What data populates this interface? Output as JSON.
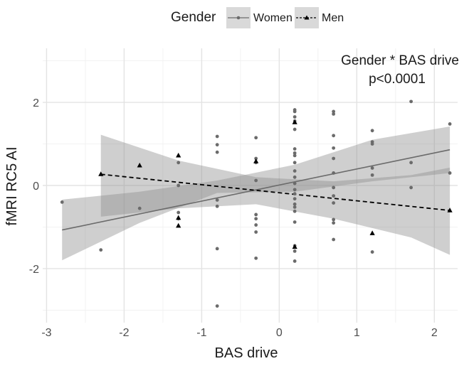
{
  "chart_data": {
    "type": "scatter",
    "xlabel": "BAS drive",
    "ylabel": "fMRI RC5 AI",
    "xlim": [
      -3.05,
      2.3
    ],
    "ylim": [
      -3.3,
      3.3
    ],
    "x_ticks": [
      -3,
      -2,
      -1,
      0,
      1,
      2
    ],
    "y_ticks": [
      -2,
      0,
      2
    ],
    "grid": true,
    "legend": {
      "title": "Gender",
      "position": "top",
      "entries": [
        {
          "label": "Women",
          "marker": "circle",
          "line": "solid"
        },
        {
          "label": "Men",
          "marker": "triangle",
          "line": "dashed"
        }
      ]
    },
    "annotations": [
      "Gender * BAS drive",
      "p<0.0001"
    ],
    "series": [
      {
        "name": "Women",
        "color": "#6b6b6b",
        "points": [
          [
            -2.8,
            -0.4
          ],
          [
            -2.3,
            -1.55
          ],
          [
            -1.8,
            -0.55
          ],
          [
            -1.3,
            0.55
          ],
          [
            -1.3,
            0.0
          ],
          [
            -1.3,
            -0.65
          ],
          [
            -1.3,
            -0.8
          ],
          [
            -0.8,
            1.18
          ],
          [
            -0.8,
            0.98
          ],
          [
            -0.8,
            0.8
          ],
          [
            -0.8,
            -0.35
          ],
          [
            -0.8,
            -0.5
          ],
          [
            -0.8,
            -1.52
          ],
          [
            -0.8,
            -2.9
          ],
          [
            -0.3,
            1.15
          ],
          [
            -0.3,
            0.65
          ],
          [
            -0.3,
            0.55
          ],
          [
            -0.3,
            0.12
          ],
          [
            -0.3,
            -0.7
          ],
          [
            -0.3,
            -0.8
          ],
          [
            -0.3,
            -0.95
          ],
          [
            -0.3,
            -1.12
          ],
          [
            -0.3,
            -1.75
          ],
          [
            0.2,
            1.82
          ],
          [
            0.2,
            1.78
          ],
          [
            0.2,
            1.65
          ],
          [
            0.2,
            1.55
          ],
          [
            0.2,
            1.35
          ],
          [
            0.2,
            0.88
          ],
          [
            0.2,
            0.78
          ],
          [
            0.2,
            0.72
          ],
          [
            0.2,
            0.55
          ],
          [
            0.2,
            0.35
          ],
          [
            0.2,
            0.2
          ],
          [
            0.2,
            0.05
          ],
          [
            0.2,
            -0.1
          ],
          [
            0.2,
            -0.2
          ],
          [
            0.2,
            -0.32
          ],
          [
            0.2,
            -0.45
          ],
          [
            0.2,
            -0.52
          ],
          [
            0.2,
            -0.62
          ],
          [
            0.2,
            -0.88
          ],
          [
            0.2,
            -1.45
          ],
          [
            0.2,
            -1.58
          ],
          [
            0.2,
            -1.82
          ],
          [
            0.7,
            1.78
          ],
          [
            0.7,
            1.72
          ],
          [
            0.7,
            1.2
          ],
          [
            0.7,
            0.9
          ],
          [
            0.7,
            0.65
          ],
          [
            0.7,
            0.3
          ],
          [
            0.7,
            -0.05
          ],
          [
            0.7,
            -0.25
          ],
          [
            0.7,
            -0.42
          ],
          [
            0.7,
            -0.82
          ],
          [
            0.7,
            -0.9
          ],
          [
            0.7,
            -1.3
          ],
          [
            1.2,
            1.32
          ],
          [
            1.2,
            1.05
          ],
          [
            1.2,
            1.0
          ],
          [
            1.2,
            0.42
          ],
          [
            1.2,
            0.25
          ],
          [
            1.2,
            -1.6
          ],
          [
            1.7,
            2.02
          ],
          [
            1.7,
            0.55
          ],
          [
            1.7,
            -0.05
          ],
          [
            2.2,
            1.48
          ],
          [
            2.2,
            0.3
          ]
        ],
        "fit": [
          [
            -2.8,
            -1.07
          ],
          [
            2.2,
            0.86
          ]
        ],
        "ci_band": [
          [
            -2.8,
            -1.8,
            -0.34
          ],
          [
            -1.8,
            -0.9,
            -0.15
          ],
          [
            -0.8,
            -0.18,
            0.12
          ],
          [
            0.2,
            -0.15,
            0.5
          ],
          [
            1.2,
            0.1,
            1.1
          ],
          [
            2.2,
            0.3,
            1.42
          ]
        ]
      },
      {
        "name": "Men",
        "color": "#000000",
        "points": [
          [
            -2.3,
            0.27
          ],
          [
            -1.8,
            0.48
          ],
          [
            -1.3,
            0.72
          ],
          [
            -1.3,
            -0.78
          ],
          [
            -1.3,
            -0.97
          ],
          [
            -0.3,
            0.58
          ],
          [
            0.2,
            1.52
          ],
          [
            0.2,
            -1.48
          ],
          [
            1.2,
            -1.15
          ],
          [
            2.2,
            -0.6
          ]
        ],
        "fit": [
          [
            -2.3,
            0.27
          ],
          [
            2.2,
            -0.6
          ]
        ],
        "ci_band": [
          [
            -2.3,
            -0.75,
            1.22
          ],
          [
            -1.3,
            -0.55,
            0.6
          ],
          [
            -0.3,
            -0.45,
            0.2
          ],
          [
            0.7,
            -0.8,
            0.1
          ],
          [
            1.7,
            -1.25,
            0.25
          ],
          [
            2.2,
            -1.67,
            0.43
          ]
        ]
      }
    ]
  }
}
